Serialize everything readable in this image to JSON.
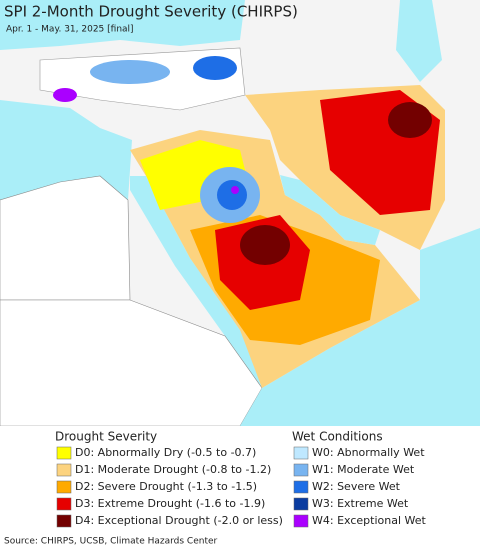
{
  "header": {
    "title": "SPI 2-Month Drought Severity (CHIRPS)",
    "subtitle": "Apr. 1 - May. 31, 2025 [final]"
  },
  "legend": {
    "drought": {
      "title": "Drought Severity",
      "items": [
        {
          "label": "D0: Abnormally Dry (-0.5 to -0.7)",
          "color": "#ffff00"
        },
        {
          "label": "D1: Moderate Drought (-0.8 to -1.2)",
          "color": "#fcd37f"
        },
        {
          "label": "D2: Severe Drought (-1.3 to -1.5)",
          "color": "#ffaa00"
        },
        {
          "label": "D3: Extreme Drought (-1.6 to -1.9)",
          "color": "#e60000"
        },
        {
          "label": "D4: Exceptional Drought (-2.0 or less)",
          "color": "#730000"
        }
      ]
    },
    "wet": {
      "title": "Wet Conditions",
      "items": [
        {
          "label": "W0: Abnormally Wet",
          "color": "#bfe8ff"
        },
        {
          "label": "W1: Moderate Wet",
          "color": "#78b4f0"
        },
        {
          "label": "W2: Severe Wet",
          "color": "#1e6ee6"
        },
        {
          "label": "W3: Extreme Wet",
          "color": "#0a3ca0"
        },
        {
          "label": "W4: Exceptional Wet",
          "color": "#aa00ff"
        }
      ]
    }
  },
  "footer": {
    "source": "Source: CHIRPS, UCSB, Climate Hazards Center"
  }
}
